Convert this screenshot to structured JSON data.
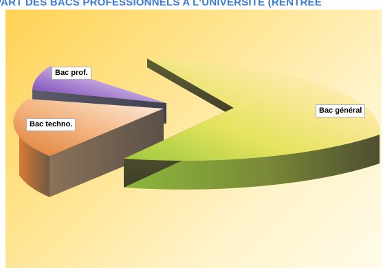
{
  "title": "PART DES BACS PROFESSIONNELS A L'UNIVERSITE (RENTRÉE",
  "chart_data": {
    "type": "pie",
    "title": "PART DES BACS PROFESSIONNELS A L'UNIVERSITE (RENTRÉE",
    "three_d": true,
    "exploded": true,
    "legend": "none",
    "categories": [
      "Bac général",
      "Bac techno.",
      "Bac prof."
    ],
    "values": [
      75,
      17,
      8
    ],
    "slice_labels": [
      "Bac général",
      "Bac techno.",
      "Bac prof."
    ],
    "colors": {
      "Bac général": "#b8d94a",
      "Bac techno.": "#e8843a",
      "Bac prof.": "#7d3fb8"
    }
  }
}
